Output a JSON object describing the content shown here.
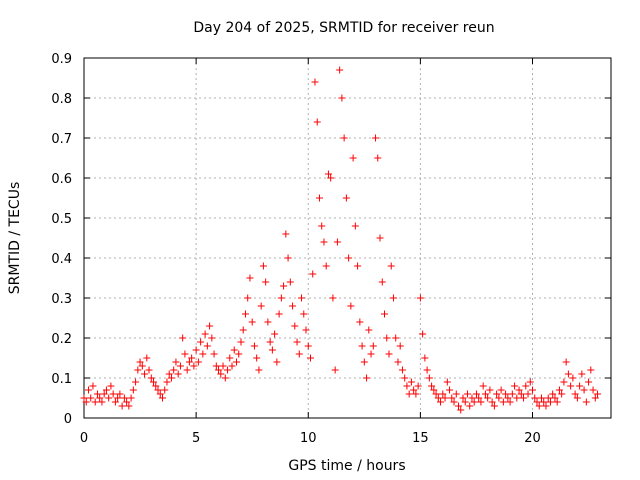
{
  "chart_data": {
    "type": "scatter",
    "title": "Day 204 of 2025, SRMTID for receiver reun",
    "xlabel": "GPS time / hours",
    "ylabel": "SRMTID / TECUs",
    "xlim": [
      0,
      23.5
    ],
    "ylim": [
      0,
      0.9
    ],
    "xticks": [
      0,
      5,
      10,
      15,
      20
    ],
    "xtick_labels": [
      "0",
      "5",
      "10",
      "15",
      "20"
    ],
    "yticks": [
      0,
      0.1,
      0.2,
      0.3,
      0.4,
      0.5,
      0.6,
      0.7,
      0.8,
      0.9
    ],
    "ytick_labels": [
      "0",
      "0.1",
      "0.2",
      "0.3",
      "0.4",
      "0.5",
      "0.6",
      "0.7",
      "0.8",
      "0.9"
    ],
    "grid": true,
    "marker": "plus",
    "color": "#ff0000",
    "series": [
      {
        "name": "SRMTID",
        "points": [
          [
            0.0,
            0.05
          ],
          [
            0.1,
            0.04
          ],
          [
            0.2,
            0.07
          ],
          [
            0.3,
            0.05
          ],
          [
            0.4,
            0.08
          ],
          [
            0.5,
            0.04
          ],
          [
            0.6,
            0.06
          ],
          [
            0.7,
            0.05
          ],
          [
            0.8,
            0.04
          ],
          [
            0.9,
            0.06
          ],
          [
            1.0,
            0.07
          ],
          [
            1.1,
            0.05
          ],
          [
            1.2,
            0.08
          ],
          [
            1.3,
            0.06
          ],
          [
            1.4,
            0.04
          ],
          [
            1.5,
            0.05
          ],
          [
            1.6,
            0.06
          ],
          [
            1.7,
            0.03
          ],
          [
            1.8,
            0.05
          ],
          [
            1.9,
            0.04
          ],
          [
            2.0,
            0.03
          ],
          [
            2.1,
            0.05
          ],
          [
            2.2,
            0.07
          ],
          [
            2.3,
            0.09
          ],
          [
            2.4,
            0.12
          ],
          [
            2.5,
            0.14
          ],
          [
            2.6,
            0.13
          ],
          [
            2.7,
            0.11
          ],
          [
            2.8,
            0.15
          ],
          [
            2.9,
            0.12
          ],
          [
            3.0,
            0.1
          ],
          [
            3.1,
            0.09
          ],
          [
            3.2,
            0.08
          ],
          [
            3.3,
            0.07
          ],
          [
            3.4,
            0.06
          ],
          [
            3.5,
            0.05
          ],
          [
            3.6,
            0.07
          ],
          [
            3.7,
            0.09
          ],
          [
            3.8,
            0.11
          ],
          [
            3.9,
            0.1
          ],
          [
            4.0,
            0.12
          ],
          [
            4.1,
            0.14
          ],
          [
            4.2,
            0.11
          ],
          [
            4.3,
            0.13
          ],
          [
            4.4,
            0.2
          ],
          [
            4.5,
            0.16
          ],
          [
            4.6,
            0.12
          ],
          [
            4.7,
            0.14
          ],
          [
            4.8,
            0.15
          ],
          [
            4.9,
            0.13
          ],
          [
            5.0,
            0.17
          ],
          [
            5.1,
            0.14
          ],
          [
            5.2,
            0.19
          ],
          [
            5.3,
            0.16
          ],
          [
            5.4,
            0.21
          ],
          [
            5.5,
            0.18
          ],
          [
            5.6,
            0.23
          ],
          [
            5.7,
            0.2
          ],
          [
            5.8,
            0.16
          ],
          [
            5.9,
            0.13
          ],
          [
            6.0,
            0.12
          ],
          [
            6.1,
            0.11
          ],
          [
            6.2,
            0.13
          ],
          [
            6.3,
            0.1
          ],
          [
            6.4,
            0.12
          ],
          [
            6.5,
            0.15
          ],
          [
            6.6,
            0.13
          ],
          [
            6.7,
            0.17
          ],
          [
            6.8,
            0.14
          ],
          [
            6.9,
            0.16
          ],
          [
            7.0,
            0.19
          ],
          [
            7.1,
            0.22
          ],
          [
            7.2,
            0.26
          ],
          [
            7.3,
            0.3
          ],
          [
            7.4,
            0.35
          ],
          [
            7.5,
            0.24
          ],
          [
            7.6,
            0.18
          ],
          [
            7.7,
            0.15
          ],
          [
            7.8,
            0.12
          ],
          [
            7.9,
            0.28
          ],
          [
            8.0,
            0.38
          ],
          [
            8.1,
            0.34
          ],
          [
            8.2,
            0.24
          ],
          [
            8.3,
            0.19
          ],
          [
            8.4,
            0.17
          ],
          [
            8.5,
            0.21
          ],
          [
            8.6,
            0.14
          ],
          [
            8.7,
            0.26
          ],
          [
            8.8,
            0.3
          ],
          [
            8.9,
            0.33
          ],
          [
            9.0,
            0.46
          ],
          [
            9.1,
            0.4
          ],
          [
            9.2,
            0.34
          ],
          [
            9.3,
            0.28
          ],
          [
            9.4,
            0.23
          ],
          [
            9.5,
            0.19
          ],
          [
            9.6,
            0.16
          ],
          [
            9.7,
            0.3
          ],
          [
            9.8,
            0.26
          ],
          [
            9.9,
            0.22
          ],
          [
            10.0,
            0.18
          ],
          [
            10.1,
            0.15
          ],
          [
            10.2,
            0.36
          ],
          [
            10.3,
            0.84
          ],
          [
            10.4,
            0.74
          ],
          [
            10.5,
            0.55
          ],
          [
            10.6,
            0.48
          ],
          [
            10.7,
            0.44
          ],
          [
            10.8,
            0.38
          ],
          [
            10.9,
            0.61
          ],
          [
            11.0,
            0.6
          ],
          [
            11.1,
            0.3
          ],
          [
            11.2,
            0.12
          ],
          [
            11.3,
            0.44
          ],
          [
            11.4,
            0.87
          ],
          [
            11.5,
            0.8
          ],
          [
            11.6,
            0.7
          ],
          [
            11.7,
            0.55
          ],
          [
            11.8,
            0.4
          ],
          [
            11.9,
            0.28
          ],
          [
            12.0,
            0.65
          ],
          [
            12.1,
            0.48
          ],
          [
            12.2,
            0.38
          ],
          [
            12.3,
            0.24
          ],
          [
            12.4,
            0.18
          ],
          [
            12.5,
            0.14
          ],
          [
            12.6,
            0.1
          ],
          [
            12.7,
            0.22
          ],
          [
            12.8,
            0.16
          ],
          [
            12.9,
            0.18
          ],
          [
            13.0,
            0.7
          ],
          [
            13.1,
            0.65
          ],
          [
            13.2,
            0.45
          ],
          [
            13.3,
            0.34
          ],
          [
            13.4,
            0.26
          ],
          [
            13.5,
            0.2
          ],
          [
            13.6,
            0.16
          ],
          [
            13.7,
            0.38
          ],
          [
            13.8,
            0.3
          ],
          [
            13.9,
            0.2
          ],
          [
            14.0,
            0.14
          ],
          [
            14.1,
            0.18
          ],
          [
            14.2,
            0.12
          ],
          [
            14.3,
            0.1
          ],
          [
            14.4,
            0.08
          ],
          [
            14.5,
            0.06
          ],
          [
            14.6,
            0.09
          ],
          [
            14.7,
            0.07
          ],
          [
            14.8,
            0.06
          ],
          [
            14.9,
            0.08
          ],
          [
            15.0,
            0.3
          ],
          [
            15.1,
            0.21
          ],
          [
            15.2,
            0.15
          ],
          [
            15.3,
            0.12
          ],
          [
            15.4,
            0.1
          ],
          [
            15.5,
            0.08
          ],
          [
            15.6,
            0.07
          ],
          [
            15.7,
            0.06
          ],
          [
            15.8,
            0.05
          ],
          [
            15.9,
            0.04
          ],
          [
            16.0,
            0.06
          ],
          [
            16.1,
            0.05
          ],
          [
            16.2,
            0.09
          ],
          [
            16.3,
            0.07
          ],
          [
            16.4,
            0.05
          ],
          [
            16.5,
            0.04
          ],
          [
            16.6,
            0.06
          ],
          [
            16.7,
            0.03
          ],
          [
            16.8,
            0.02
          ],
          [
            16.9,
            0.05
          ],
          [
            17.0,
            0.04
          ],
          [
            17.1,
            0.06
          ],
          [
            17.2,
            0.03
          ],
          [
            17.3,
            0.05
          ],
          [
            17.4,
            0.04
          ],
          [
            17.5,
            0.06
          ],
          [
            17.6,
            0.05
          ],
          [
            17.7,
            0.04
          ],
          [
            17.8,
            0.08
          ],
          [
            17.9,
            0.06
          ],
          [
            18.0,
            0.05
          ],
          [
            18.1,
            0.07
          ],
          [
            18.2,
            0.04
          ],
          [
            18.3,
            0.03
          ],
          [
            18.4,
            0.06
          ],
          [
            18.5,
            0.05
          ],
          [
            18.6,
            0.07
          ],
          [
            18.7,
            0.04
          ],
          [
            18.8,
            0.06
          ],
          [
            18.9,
            0.05
          ],
          [
            19.0,
            0.04
          ],
          [
            19.1,
            0.06
          ],
          [
            19.2,
            0.08
          ],
          [
            19.3,
            0.05
          ],
          [
            19.4,
            0.07
          ],
          [
            19.5,
            0.06
          ],
          [
            19.6,
            0.05
          ],
          [
            19.7,
            0.08
          ],
          [
            19.8,
            0.06
          ],
          [
            19.9,
            0.09
          ],
          [
            20.0,
            0.07
          ],
          [
            20.1,
            0.05
          ],
          [
            20.2,
            0.04
          ],
          [
            20.3,
            0.03
          ],
          [
            20.4,
            0.05
          ],
          [
            20.5,
            0.04
          ],
          [
            20.6,
            0.03
          ],
          [
            20.7,
            0.05
          ],
          [
            20.8,
            0.04
          ],
          [
            20.9,
            0.06
          ],
          [
            21.0,
            0.05
          ],
          [
            21.1,
            0.04
          ],
          [
            21.2,
            0.07
          ],
          [
            21.3,
            0.06
          ],
          [
            21.4,
            0.09
          ],
          [
            21.5,
            0.14
          ],
          [
            21.6,
            0.11
          ],
          [
            21.7,
            0.08
          ],
          [
            21.8,
            0.1
          ],
          [
            21.9,
            0.06
          ],
          [
            22.0,
            0.05
          ],
          [
            22.1,
            0.08
          ],
          [
            22.2,
            0.11
          ],
          [
            22.3,
            0.07
          ],
          [
            22.4,
            0.04
          ],
          [
            22.5,
            0.09
          ],
          [
            22.6,
            0.12
          ],
          [
            22.7,
            0.07
          ],
          [
            22.8,
            0.05
          ],
          [
            22.9,
            0.06
          ]
        ]
      }
    ]
  }
}
